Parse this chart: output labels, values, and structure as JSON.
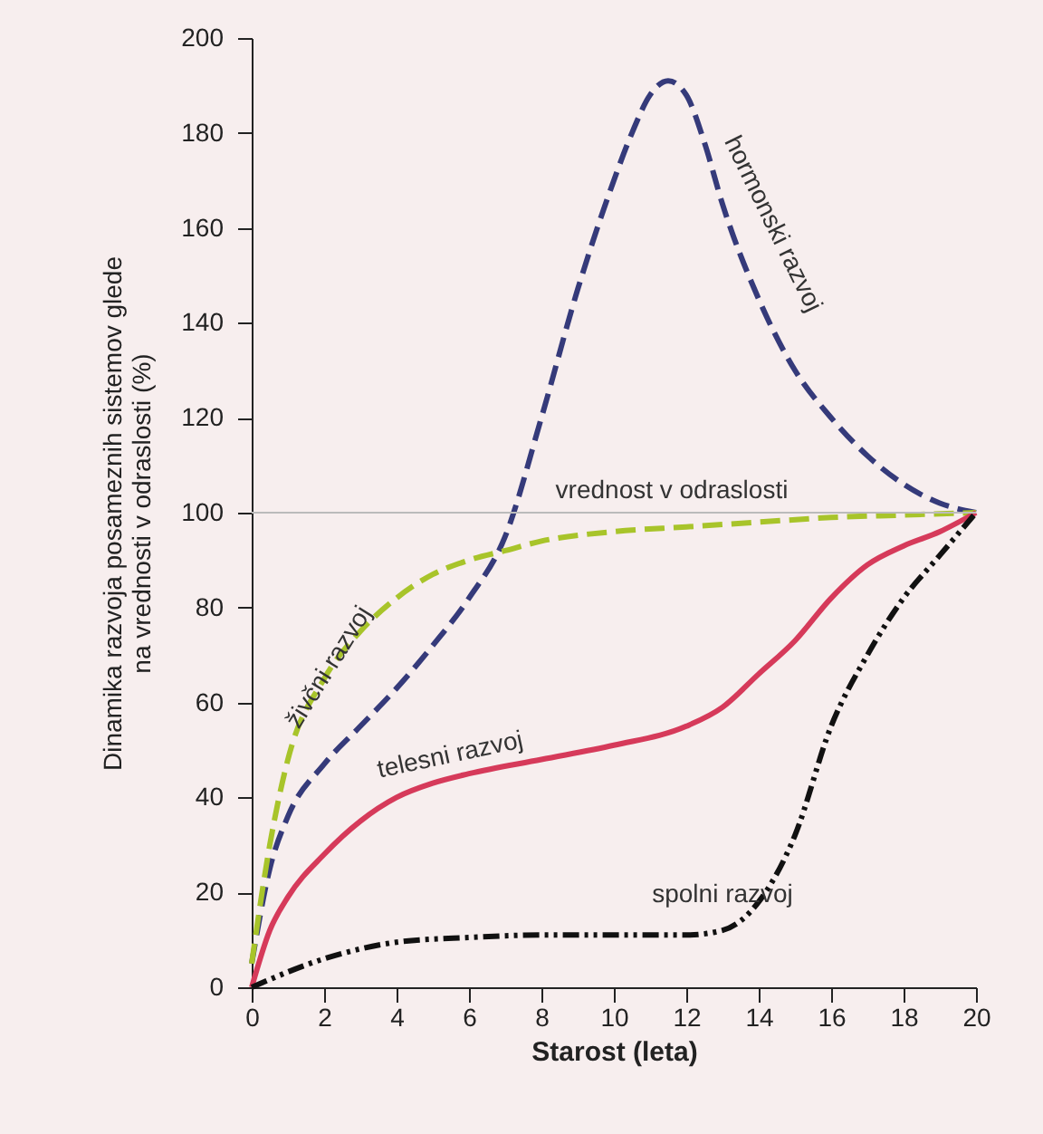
{
  "chart_data": {
    "type": "line",
    "xlabel": "Starost (leta)",
    "ylabel": "Dinamika razvoja posameznih sistemov glede na vrednosti v odraslosti (%)",
    "xlim": [
      0,
      20
    ],
    "xticks": [
      0,
      2,
      4,
      6,
      8,
      10,
      12,
      14,
      16,
      18,
      20
    ],
    "ylim": [
      0,
      200
    ],
    "yticks": [
      0,
      20,
      40,
      60,
      80,
      100,
      120,
      140,
      160,
      180,
      200
    ],
    "grid": false,
    "marker": "none",
    "ref_lines": [
      {
        "axis": "y",
        "value": 100,
        "label": "vrednost v odraslosti",
        "color": "#bbbbbb"
      }
    ],
    "series": [
      {
        "name": "hormonski razvoj",
        "color": "#353a7a",
        "line_style": "dashed",
        "x": [
          0,
          0.5,
          1,
          2,
          3,
          4,
          5,
          6,
          7,
          8,
          9,
          10,
          10.5,
          11,
          11.5,
          12,
          12.5,
          13,
          14,
          15,
          16,
          17,
          18,
          19,
          20
        ],
        "values": [
          5,
          25,
          36,
          47,
          55,
          63,
          72,
          82,
          95,
          120,
          147,
          170,
          180,
          188,
          191,
          188,
          178,
          165,
          145,
          130,
          120,
          112,
          106,
          102,
          100
        ]
      },
      {
        "name": "živčni razvoj",
        "color": "#a8c42a",
        "line_style": "dashed",
        "x": [
          0,
          0.5,
          1,
          2,
          3,
          4,
          5,
          6,
          7,
          8,
          10,
          12,
          14,
          16,
          18,
          20
        ],
        "values": [
          5,
          30,
          48,
          65,
          75,
          82,
          87,
          90,
          92,
          94,
          96,
          97,
          98,
          99,
          99.5,
          100
        ]
      },
      {
        "name": "telesni razvoj",
        "color": "#d63a5a",
        "line_style": "solid",
        "x": [
          0,
          0.5,
          1,
          2,
          3,
          4,
          5,
          6,
          8,
          10,
          12,
          13,
          14,
          15,
          16,
          17,
          18,
          19,
          20
        ],
        "values": [
          0,
          12,
          19,
          28,
          35,
          40,
          43,
          45,
          48,
          51,
          55,
          59,
          66,
          73,
          82,
          89,
          93,
          96,
          100
        ]
      },
      {
        "name": "spolni razvoj",
        "color": "#111111",
        "line_style": "dotted",
        "x": [
          0,
          2,
          4,
          6,
          8,
          10,
          12,
          13,
          14,
          15,
          16,
          17,
          18,
          19,
          20
        ],
        "values": [
          0,
          6,
          9.5,
          10.5,
          11,
          11,
          11,
          12,
          18,
          32,
          55,
          70,
          82,
          91,
          100
        ]
      }
    ]
  }
}
